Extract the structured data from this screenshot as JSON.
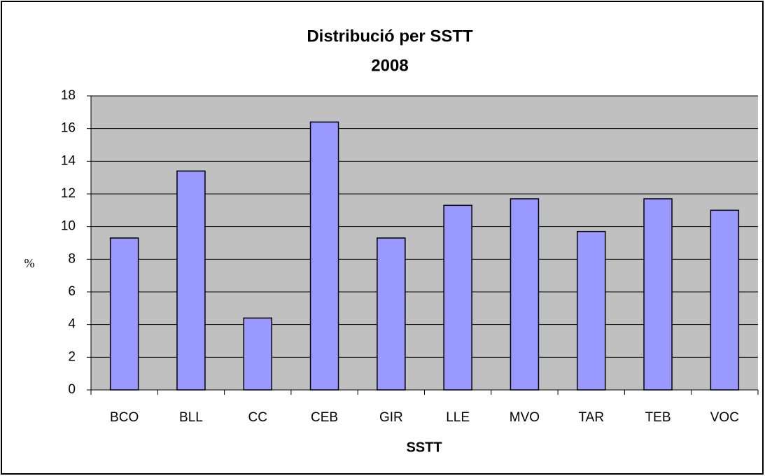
{
  "chart_data": {
    "type": "bar",
    "title": "Distribució per SSTT",
    "subtitle": "2008",
    "x_label": "SSTT",
    "y_label": "%",
    "categories": [
      "BCO",
      "BLL",
      "CC",
      "CEB",
      "GIR",
      "LLE",
      "MVO",
      "TAR",
      "TEB",
      "VOC"
    ],
    "values": [
      9.3,
      13.4,
      4.4,
      16.4,
      9.3,
      11.3,
      11.7,
      9.7,
      11.7,
      11.0
    ],
    "color": "#9999ff",
    "ylim": [
      0,
      18
    ],
    "yticks": [
      0,
      2,
      4,
      6,
      8,
      10,
      12,
      14,
      16,
      18
    ],
    "grid": true
  }
}
